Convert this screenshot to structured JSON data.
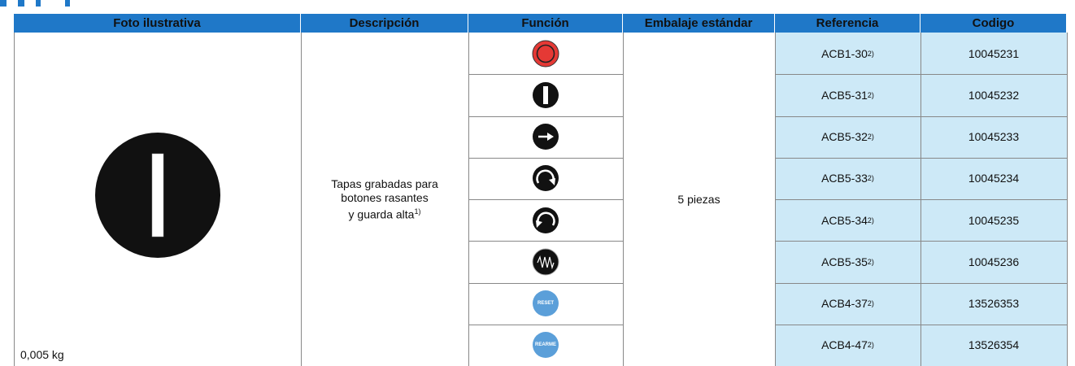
{
  "header": {
    "columns": [
      "Foto ilustrativa",
      "Descripción",
      "Función",
      "Embalaje estándar",
      "Referencia",
      "Codigo"
    ]
  },
  "photo": {
    "weight": "0,005 kg"
  },
  "description": {
    "lines": [
      "Tapas grabadas para",
      "botones rasantes",
      "y guarda alta"
    ],
    "note": "1)"
  },
  "packaging": "5 piezas",
  "rows": [
    {
      "reference": "ACB1-30",
      "note": "2)",
      "code": "10045231"
    },
    {
      "reference": "ACB5-31",
      "note": "2)",
      "code": "10045232"
    },
    {
      "reference": "ACB5-32",
      "note": "2)",
      "code": "10045233"
    },
    {
      "reference": "ACB5-33",
      "note": "2)",
      "code": "10045234"
    },
    {
      "reference": "ACB5-34",
      "note": "2)",
      "code": "10045235"
    },
    {
      "reference": "ACB5-35",
      "note": "2)",
      "code": "10045236"
    },
    {
      "reference": "ACB4-37",
      "note": "2)",
      "code": "13526353",
      "icon_label": "RESET"
    },
    {
      "reference": "ACB4-47",
      "note": "2)",
      "code": "13526354",
      "icon_label": "REARME"
    }
  ]
}
